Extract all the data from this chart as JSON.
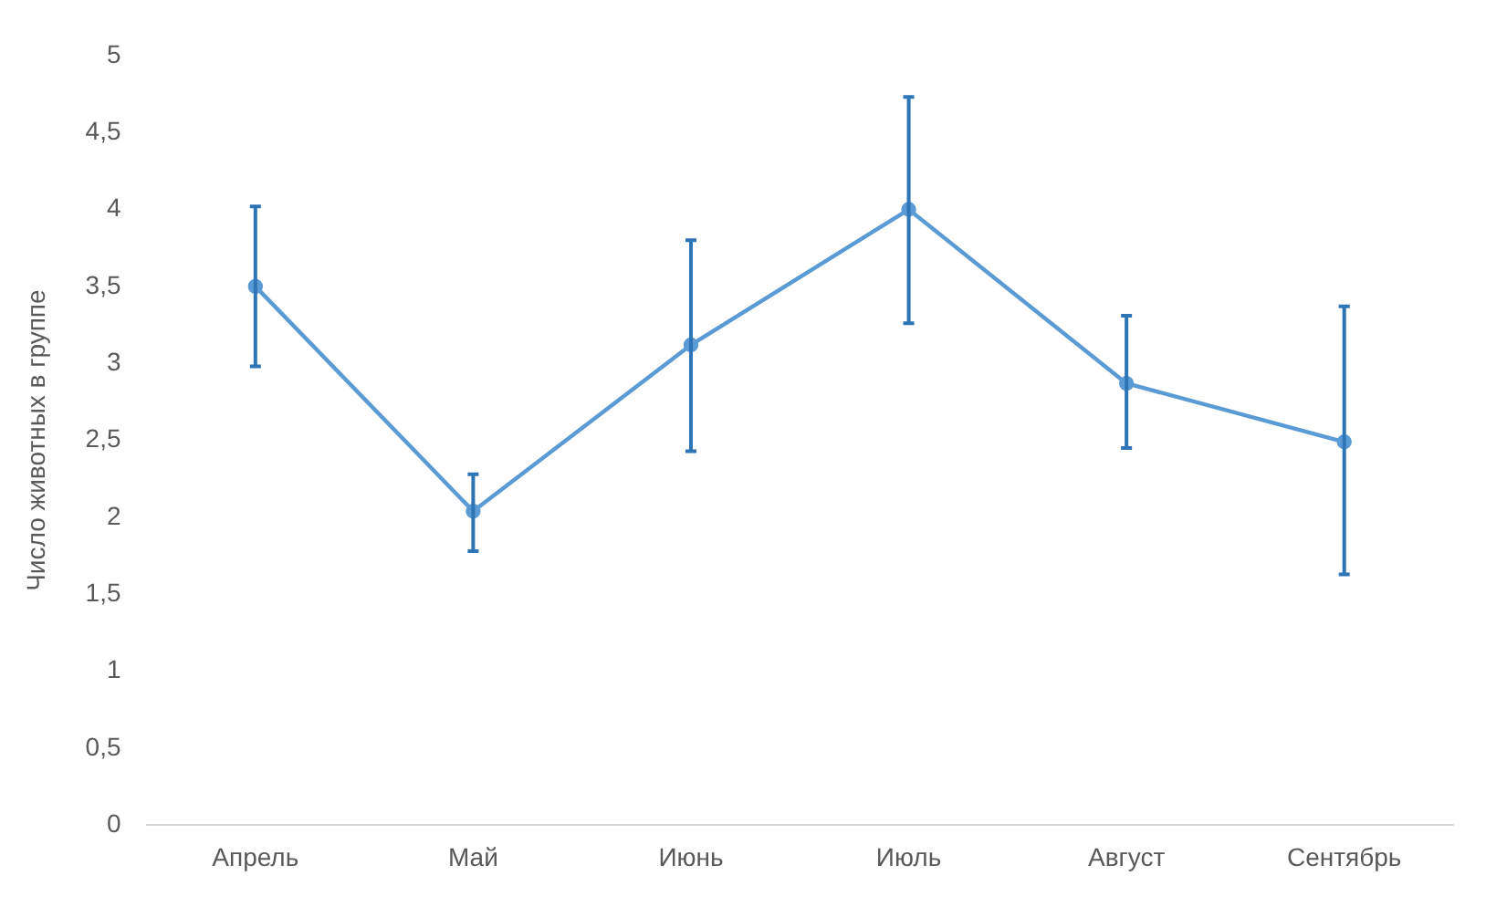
{
  "chart_data": {
    "type": "line",
    "ylabel": "Число животных в группе",
    "categories": [
      "Апрель",
      "Май",
      "Июнь",
      "Июль",
      "Август",
      "Сентябрь"
    ],
    "series": [
      {
        "color": "#5b9bd5",
        "values": [
          3.5,
          2.04,
          3.12,
          4.0,
          2.87,
          2.49
        ],
        "errors": [
          [
            2.98,
            4.02
          ],
          [
            1.78,
            2.28
          ],
          [
            2.43,
            3.8
          ],
          [
            3.26,
            4.73
          ],
          [
            2.45,
            3.31
          ],
          [
            1.63,
            3.37
          ]
        ]
      }
    ],
    "ylim": [
      0,
      5
    ],
    "yticks": [
      0,
      {
        "value": 0.5,
        "label": "0,5"
      },
      1,
      {
        "value": 1.5,
        "label": "1,5"
      },
      2,
      {
        "value": 2.5,
        "label": "2,5"
      },
      3,
      {
        "value": 3.5,
        "label": "3,5"
      },
      4,
      {
        "value": 4.5,
        "label": "4,5"
      },
      5
    ],
    "grid": false,
    "legend": false,
    "marker": "circle",
    "line_style": "solid"
  }
}
